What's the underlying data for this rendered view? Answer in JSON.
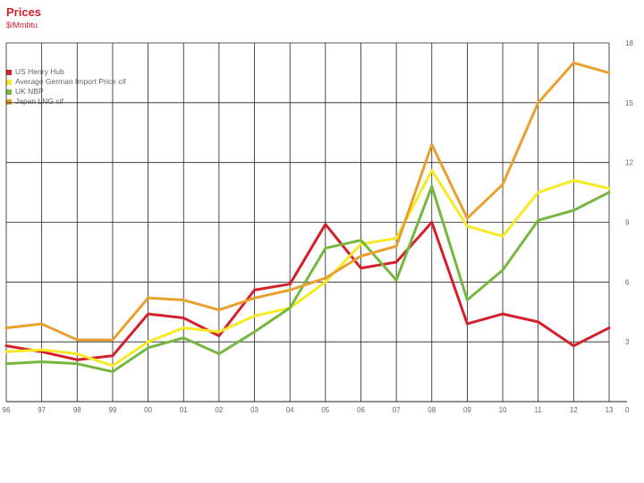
{
  "chart_data": {
    "type": "line",
    "title": "Prices",
    "subtitle": "$/Mmbtu",
    "categories": [
      "96",
      "97",
      "98",
      "99",
      "00",
      "01",
      "02",
      "03",
      "04",
      "05",
      "06",
      "07",
      "08",
      "09",
      "10",
      "11",
      "12",
      "13"
    ],
    "y_ticks": [
      "3",
      "6",
      "9",
      "12",
      "15",
      "18"
    ],
    "ylim": [
      0,
      18
    ],
    "grid": true,
    "legend_position": "top-left",
    "series": [
      {
        "name": "US Henry Hub",
        "color": "#d4202c",
        "values": [
          2.8,
          2.5,
          2.1,
          2.3,
          4.4,
          4.2,
          3.3,
          5.6,
          5.9,
          8.9,
          6.7,
          7.0,
          9.0,
          3.9,
          4.4,
          4.0,
          2.8,
          3.7
        ]
      },
      {
        "name": "Average German Import Price cif",
        "color": "#f6ea25",
        "values": [
          2.5,
          2.6,
          2.4,
          1.8,
          3.0,
          3.7,
          3.5,
          4.3,
          4.7,
          6.0,
          7.9,
          8.2,
          11.6,
          8.8,
          8.3,
          10.5,
          11.1,
          10.7
        ]
      },
      {
        "name": "UK NBP",
        "color": "#76b83f",
        "values": [
          1.9,
          2.0,
          1.9,
          1.5,
          2.7,
          3.2,
          2.4,
          3.5,
          4.7,
          7.7,
          8.1,
          6.1,
          10.8,
          5.1,
          6.6,
          9.1,
          9.6,
          10.5
        ]
      },
      {
        "name": "Japan LNG cif",
        "color": "#e8a02e",
        "values": [
          3.7,
          3.9,
          3.1,
          3.1,
          5.2,
          5.1,
          4.6,
          5.2,
          5.6,
          6.2,
          7.3,
          7.8,
          12.9,
          9.2,
          10.9,
          15.0,
          17.0,
          16.5
        ]
      }
    ]
  }
}
